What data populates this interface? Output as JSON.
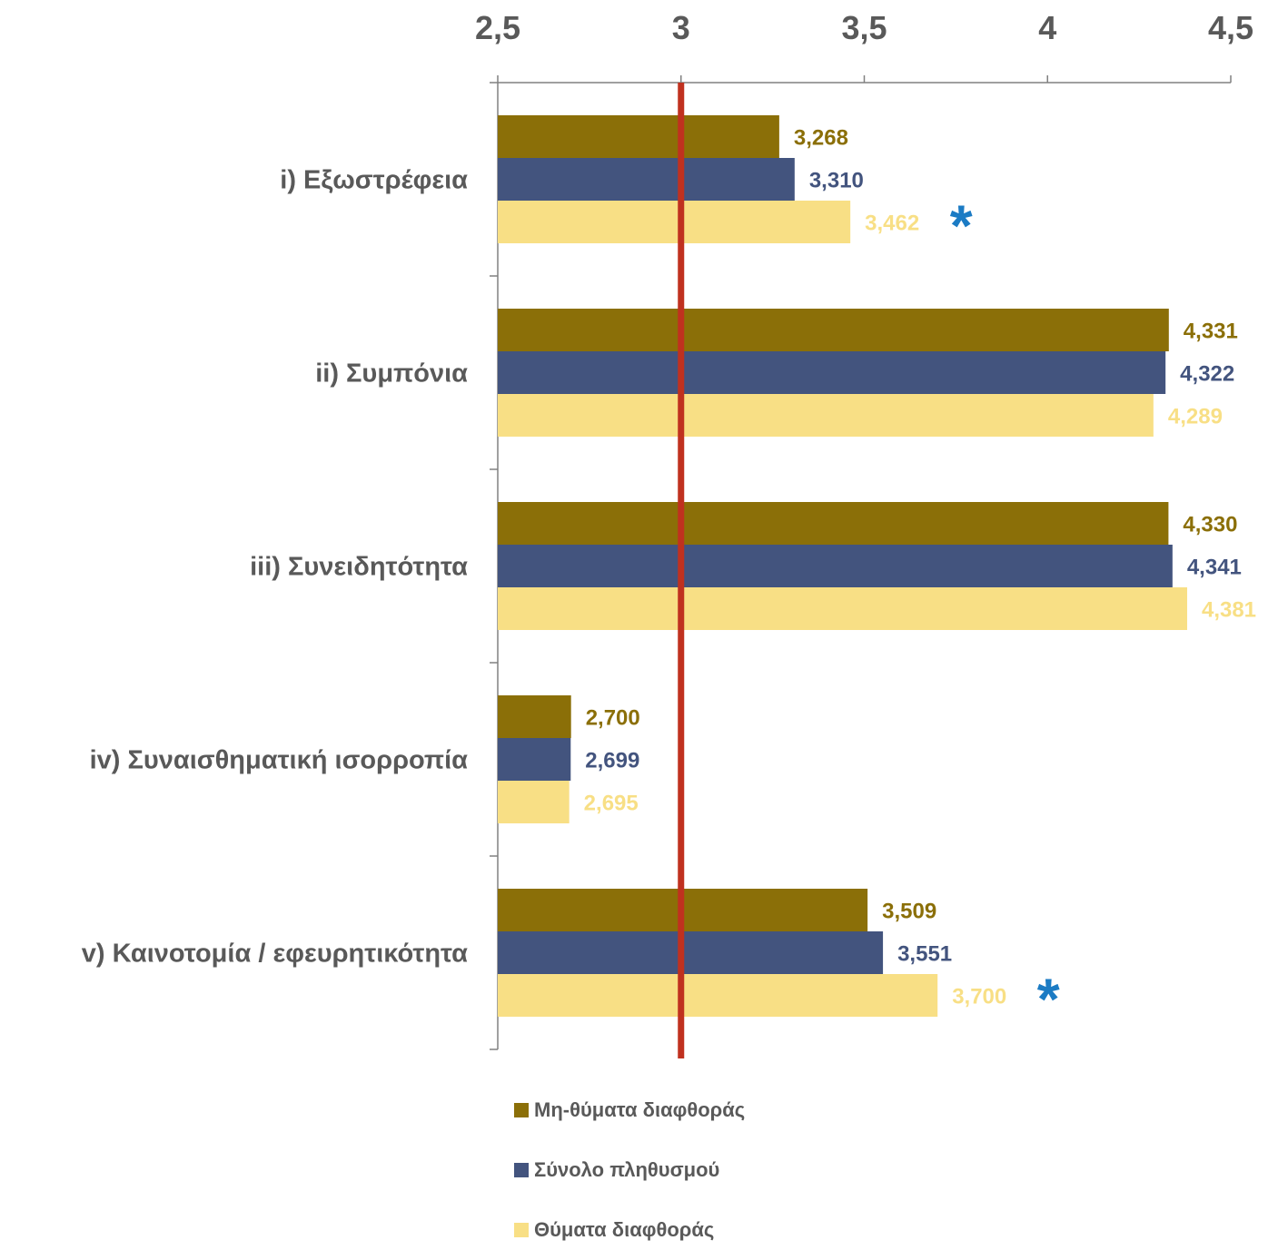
{
  "chart_data": {
    "type": "bar",
    "orientation": "horizontal",
    "title": "",
    "xlabel": "",
    "ylabel": "",
    "xlim": [
      2.5,
      4.5
    ],
    "xticks": [
      "2,5",
      "3",
      "3,5",
      "4",
      "4,5"
    ],
    "xtick_values": [
      2.5,
      3,
      3.5,
      4,
      4.5
    ],
    "axis_position": "top",
    "reference_line": 3,
    "reference_color": "#C0311F",
    "categories": [
      "i) Εξωστρέφεια",
      "ii) Συμπόνια",
      "iii) Συνειδητότητα",
      "iv) Συναισθηματική ισορροπία",
      "v) Καινοτομία / εφευρητικότητα"
    ],
    "series": [
      {
        "name": "Μη-θύματα διαφθοράς",
        "color": "#8B6F08",
        "values": [
          3.268,
          4.331,
          4.33,
          2.7,
          3.509
        ],
        "labels": [
          "3,268",
          "4,331",
          "4,330",
          "2,700",
          "3,509"
        ]
      },
      {
        "name": "Σύνολο πληθυσμού",
        "color": "#43547E",
        "values": [
          3.31,
          4.322,
          4.341,
          2.699,
          3.551
        ],
        "labels": [
          "3,310",
          "4,322",
          "4,341",
          "2,699",
          "3,551"
        ]
      },
      {
        "name": "Θύματα διαφθοράς",
        "color": "#F8DF85",
        "values": [
          3.462,
          4.289,
          4.381,
          2.695,
          3.7
        ],
        "labels": [
          "3,462",
          "4,289",
          "4,381",
          "2,695",
          "3,700"
        ]
      }
    ],
    "significance_marker": "*",
    "significance_color": "#1B7BC4",
    "significant_categories": [
      0,
      4
    ],
    "grid": false,
    "legend_position": "bottom"
  }
}
